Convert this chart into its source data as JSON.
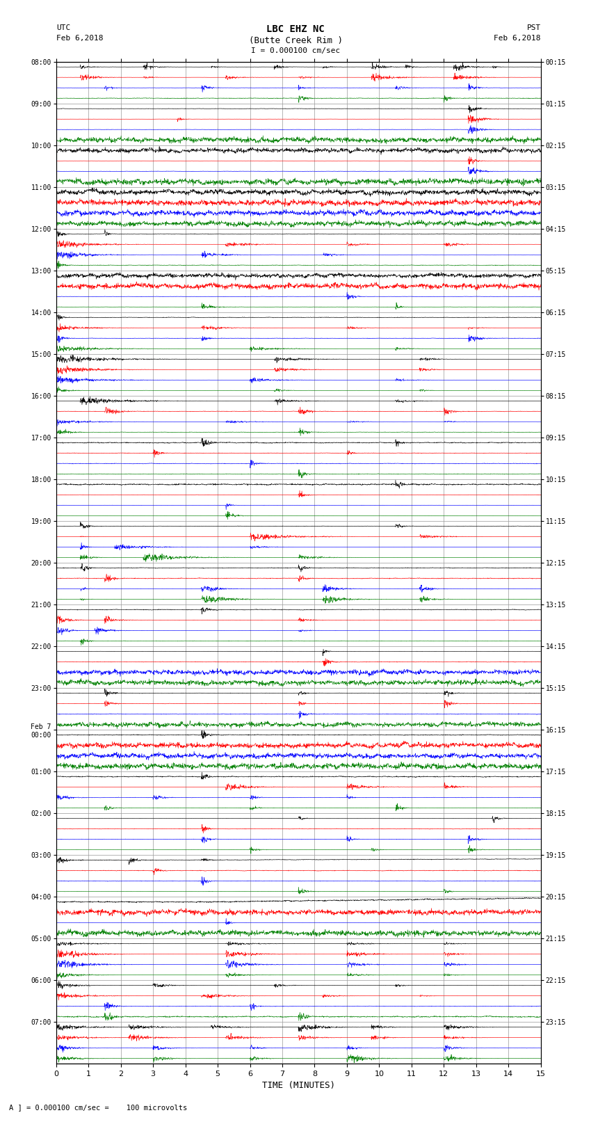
{
  "title_line1": "LBC EHZ NC",
  "title_line2": "(Butte Creek Rim )",
  "title_line3": "I = 0.000100 cm/sec",
  "label_left": "UTC",
  "label_left2": "Feb 6,2018",
  "label_right": "PST",
  "label_right2": "Feb 6,2018",
  "xlabel": "TIME (MINUTES)",
  "footer": "A ] = 0.000100 cm/sec =    100 microvolts",
  "utc_times": [
    "08:00",
    "09:00",
    "10:00",
    "11:00",
    "12:00",
    "13:00",
    "14:00",
    "15:00",
    "16:00",
    "17:00",
    "18:00",
    "19:00",
    "20:00",
    "21:00",
    "22:00",
    "23:00",
    "Feb 7\n00:00",
    "01:00",
    "02:00",
    "03:00",
    "04:00",
    "05:00",
    "06:00",
    "07:00"
  ],
  "pst_times": [
    "00:15",
    "01:15",
    "02:15",
    "03:15",
    "04:15",
    "05:15",
    "06:15",
    "07:15",
    "08:15",
    "09:15",
    "10:15",
    "11:15",
    "12:15",
    "13:15",
    "14:15",
    "15:15",
    "16:15",
    "17:15",
    "18:15",
    "19:15",
    "20:15",
    "21:15",
    "22:15",
    "23:15"
  ],
  "row_colors": [
    "black",
    "red",
    "blue",
    "green"
  ],
  "bg_color": "white",
  "grid_color": "#999999",
  "figsize": [
    8.5,
    16.13
  ],
  "dpi": 100,
  "xticks": [
    0,
    1,
    2,
    3,
    4,
    5,
    6,
    7,
    8,
    9,
    10,
    11,
    12,
    13,
    14,
    15
  ],
  "xlim": [
    0,
    15
  ],
  "time_minutes": 15,
  "n_groups": 24,
  "traces_per_group": 4
}
